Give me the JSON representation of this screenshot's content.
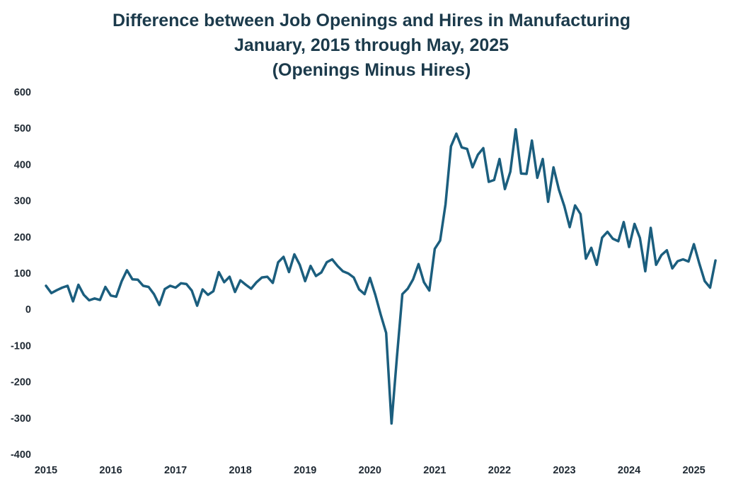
{
  "chart_data": {
    "type": "line",
    "title": "Difference between Job Openings and Hires in Manufacturing",
    "subtitle_lines": [
      "January, 2015 through May, 2025",
      "(Openings Minus Hires)"
    ],
    "xlabel": "",
    "ylabel": "",
    "x_start": "2015-01",
    "x_end": "2025-05",
    "x_tick_labels": [
      "2015",
      "2016",
      "2017",
      "2018",
      "2019",
      "2020",
      "2021",
      "2022",
      "2023",
      "2024",
      "2025"
    ],
    "y_tick_labels": [
      "600",
      "500",
      "400",
      "300",
      "200",
      "100",
      "0",
      "-100",
      "-200",
      "-300",
      "-400"
    ],
    "ylim": [
      -400,
      600
    ],
    "grid": false,
    "legend": "none",
    "colors": {
      "line": "#1b5e7e",
      "title": "#1b3a4b",
      "tick": "#1f2933"
    },
    "series": [
      {
        "values": [
          65,
          45,
          53,
          60,
          65,
          22,
          68,
          40,
          25,
          30,
          26,
          62,
          38,
          35,
          77,
          108,
          83,
          82,
          65,
          62,
          42,
          12,
          56,
          65,
          60,
          72,
          70,
          52,
          10,
          55,
          40,
          50,
          103,
          75,
          90,
          48,
          80,
          68,
          57,
          75,
          88,
          90,
          73,
          130,
          145,
          103,
          152,
          123,
          78,
          120,
          92,
          102,
          130,
          138,
          120,
          105,
          99,
          88,
          55,
          42,
          87,
          40,
          -15,
          -65,
          -315,
          -130,
          42,
          57,
          83,
          125,
          75,
          52,
          167,
          190,
          290,
          450,
          485,
          447,
          443,
          392,
          427,
          445,
          352,
          357,
          415,
          332,
          380,
          497,
          375,
          374,
          466,
          363,
          415,
          297,
          392,
          330,
          285,
          227,
          287,
          263,
          140,
          170,
          123,
          198,
          214,
          195,
          188,
          241,
          172,
          236,
          197,
          105,
          225,
          123,
          150,
          163,
          113,
          133,
          138,
          132,
          180,
          127,
          78,
          60,
          135
        ]
      }
    ]
  }
}
